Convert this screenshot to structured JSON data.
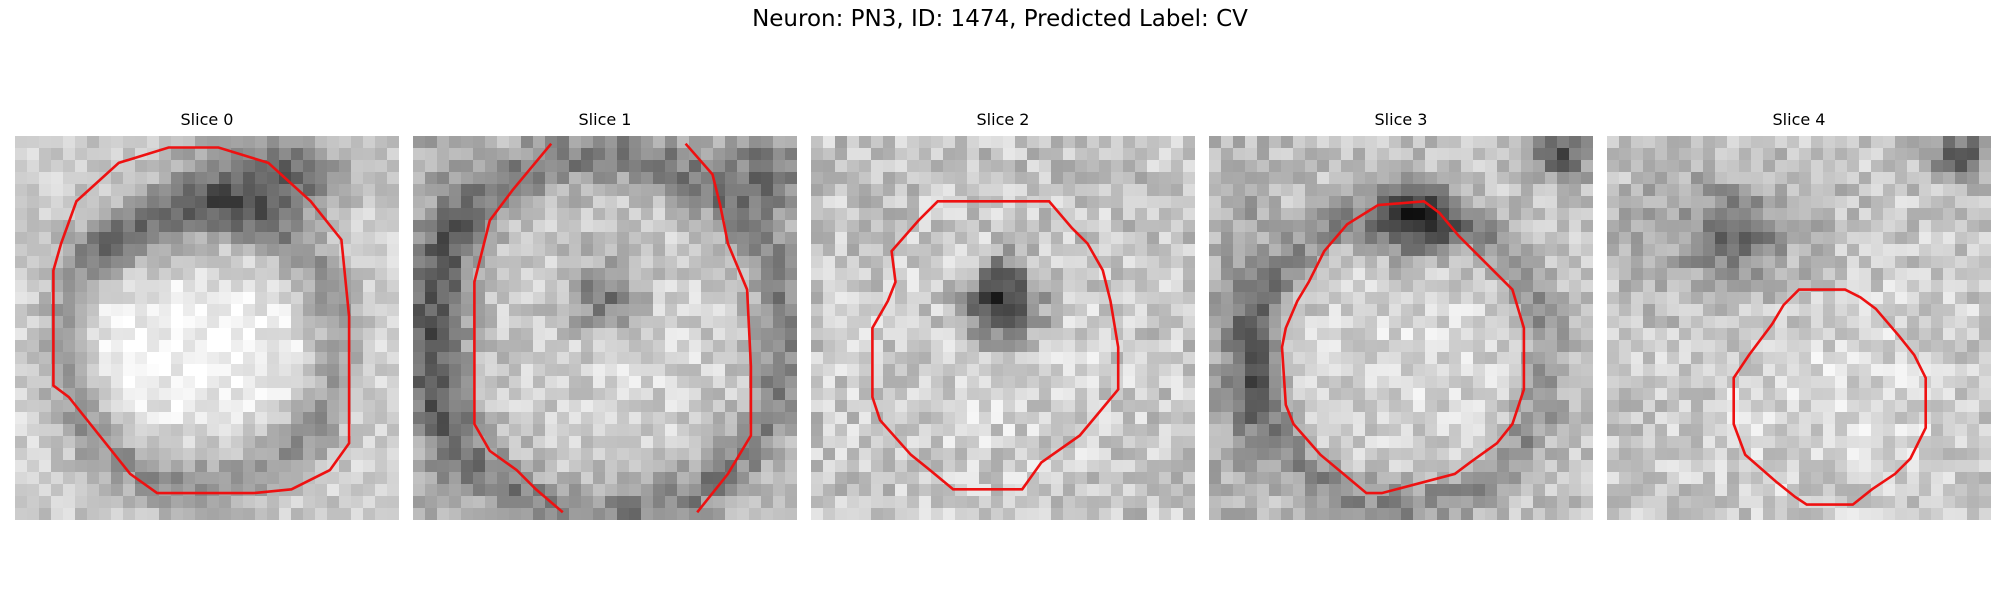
{
  "figure": {
    "title": "Neuron: PN3, ID: 1474, Predicted Label: CV",
    "contour_color": "#ee1111"
  },
  "slices": [
    {
      "title": "Slice 0"
    },
    {
      "title": "Slice 1"
    },
    {
      "title": "Slice 2"
    },
    {
      "title": "Slice 3"
    },
    {
      "title": "Slice 4"
    }
  ]
}
